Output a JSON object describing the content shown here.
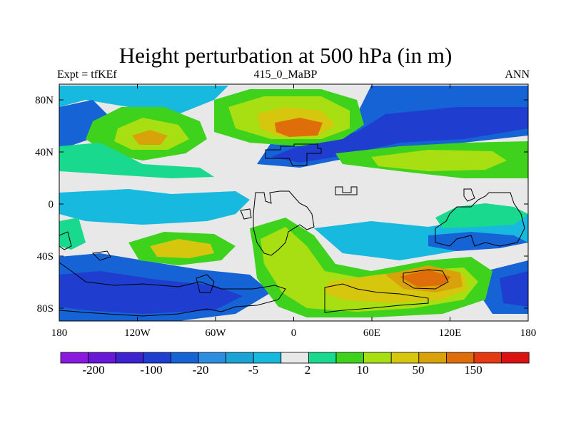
{
  "plot": {
    "title": "Height perturbation at 500 hPa (in m)",
    "left_label": "Expt = tfKEf",
    "center_label": "415_0_MaBP",
    "right_label": "ANN",
    "x_ticks": [
      "180",
      "120W",
      "60W",
      "0",
      "60E",
      "120E",
      "180"
    ],
    "y_ticks": [
      "80N",
      "40N",
      "0",
      "40S",
      "80S"
    ]
  },
  "colorbar": {
    "labels": [
      "-200",
      "-100",
      "-20",
      "-5",
      "2",
      "10",
      "50",
      "150"
    ],
    "colors": [
      "#8a1ae0",
      "#6a18d8",
      "#3d22cf",
      "#1f3ecf",
      "#1663d6",
      "#2b8ee0",
      "#1aa4d6",
      "#17b9de",
      "#e8e8e8",
      "#18d98e",
      "#3fd21c",
      "#a7df12",
      "#d6c60e",
      "#d9a20a",
      "#df6d0a",
      "#e43a12",
      "#dc1212"
    ]
  },
  "colors": {
    "background": "#e8e8e8",
    "coast": "#000000"
  }
}
